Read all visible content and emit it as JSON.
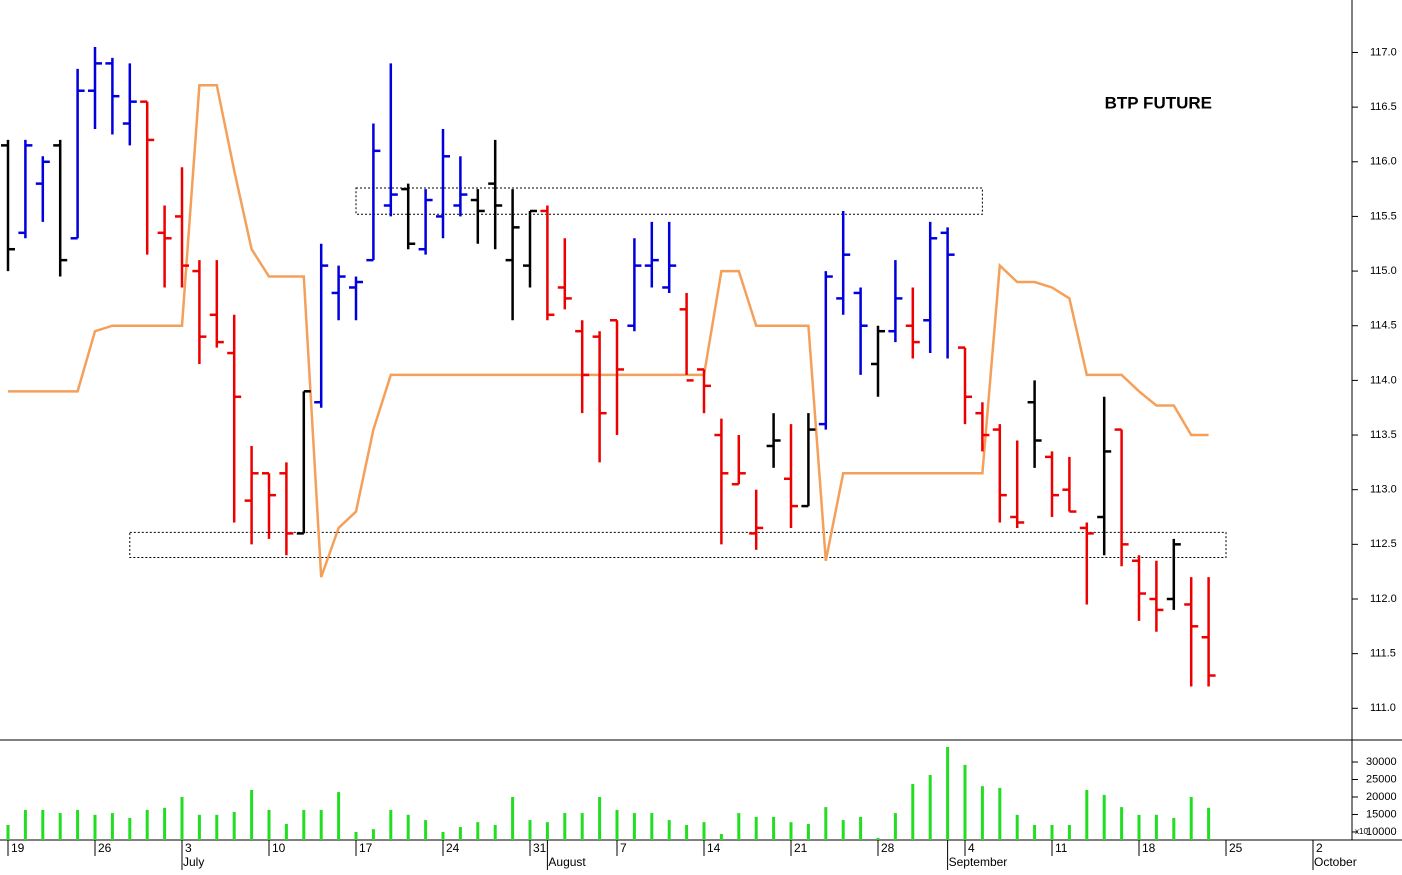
{
  "chart_data": {
    "type": "ohlc",
    "title": "BTP FUTURE",
    "categories": [
      "19",
      null,
      null,
      null,
      null,
      "26",
      null,
      null,
      null,
      null,
      "3",
      null,
      null,
      null,
      null,
      "10",
      null,
      null,
      null,
      null,
      "17",
      null,
      null,
      null,
      null,
      "24",
      null,
      null,
      null,
      null,
      "31",
      null,
      null,
      null,
      null,
      "7",
      null,
      null,
      null,
      null,
      "14",
      null,
      null,
      null,
      null,
      "21",
      null,
      null,
      null,
      null,
      "28",
      null,
      null,
      null,
      null,
      "4",
      null,
      null,
      null,
      null,
      "11",
      null,
      null,
      null,
      null,
      "18",
      null,
      null,
      null,
      null,
      "25",
      null,
      null,
      null,
      null,
      "2",
      null,
      null
    ],
    "months": [
      null,
      null,
      null,
      null,
      null,
      null,
      null,
      null,
      null,
      null,
      "July",
      null,
      null,
      null,
      null,
      null,
      null,
      null,
      null,
      null,
      null,
      null,
      null,
      null,
      null,
      null,
      null,
      null,
      null,
      null,
      null,
      "August",
      null,
      null,
      null,
      null,
      null,
      null,
      null,
      null,
      null,
      null,
      null,
      null,
      null,
      null,
      null,
      null,
      null,
      null,
      null,
      null,
      null,
      null,
      "September",
      null,
      null,
      null,
      null,
      null,
      null,
      null,
      null,
      null,
      null,
      null,
      null,
      null,
      null,
      null,
      null,
      null,
      null,
      null,
      null,
      "October",
      null,
      null
    ],
    "open": [
      116.15,
      115.35,
      115.8,
      116.15,
      115.3,
      116.65,
      116.9,
      116.35,
      116.55,
      115.35,
      115.5,
      115.0,
      114.6,
      114.25,
      112.9,
      113.15,
      113.15,
      112.6,
      113.8,
      114.8,
      114.85,
      115.1,
      115.6,
      115.75,
      115.2,
      115.5,
      115.6,
      115.65,
      115.8,
      115.1,
      115.05,
      115.55,
      114.85,
      114.45,
      114.4,
      114.55,
      114.5,
      115.05,
      114.85,
      114.65,
      114.1,
      113.5,
      113.05,
      112.6,
      113.4,
      113.1,
      112.85,
      113.6,
      114.75,
      114.8,
      114.15,
      114.45,
      114.5,
      114.55,
      115.35,
      114.3,
      113.7,
      113.55,
      112.75,
      113.8,
      113.3,
      113.0,
      112.65,
      112.75,
      113.55,
      112.35,
      112.0,
      112.0,
      111.95,
      111.65,
      null,
      null,
      null,
      null,
      null,
      null,
      null,
      null
    ],
    "high": [
      116.2,
      116.2,
      116.05,
      116.2,
      116.85,
      117.05,
      116.95,
      116.9,
      116.55,
      115.6,
      115.95,
      115.1,
      115.1,
      114.6,
      113.4,
      113.15,
      113.25,
      113.9,
      115.25,
      115.05,
      114.95,
      116.35,
      116.9,
      115.8,
      115.75,
      116.3,
      116.05,
      115.75,
      116.2,
      115.75,
      115.55,
      115.6,
      115.3,
      114.55,
      114.45,
      114.55,
      115.3,
      115.45,
      115.45,
      114.8,
      114.1,
      113.65,
      113.5,
      113.0,
      113.7,
      113.6,
      113.7,
      115.0,
      115.55,
      114.85,
      114.5,
      115.1,
      114.85,
      115.45,
      115.4,
      114.3,
      113.8,
      113.6,
      113.45,
      114.0,
      113.35,
      113.3,
      112.7,
      113.85,
      113.55,
      112.4,
      112.35,
      112.55,
      112.2,
      112.2,
      null,
      null,
      null,
      null,
      null,
      null,
      null,
      null
    ],
    "low": [
      115.0,
      115.3,
      115.45,
      114.95,
      115.3,
      116.3,
      116.25,
      116.15,
      115.15,
      114.85,
      114.85,
      114.15,
      114.3,
      112.7,
      112.5,
      112.55,
      112.4,
      112.6,
      113.75,
      114.55,
      114.55,
      115.1,
      115.5,
      115.2,
      115.15,
      115.3,
      115.5,
      115.25,
      115.2,
      114.55,
      114.85,
      114.55,
      114.65,
      113.7,
      113.25,
      113.5,
      114.45,
      114.85,
      114.8,
      114.05,
      113.7,
      112.5,
      113.05,
      112.45,
      113.2,
      112.65,
      112.85,
      113.55,
      114.6,
      114.05,
      113.85,
      114.35,
      114.2,
      114.25,
      114.2,
      113.6,
      113.35,
      112.7,
      112.65,
      113.2,
      112.75,
      112.8,
      111.95,
      112.4,
      112.3,
      111.8,
      111.7,
      111.9,
      111.2,
      111.2,
      null,
      null,
      null,
      null,
      null,
      null,
      null,
      null
    ],
    "close": [
      115.2,
      116.15,
      116.0,
      115.1,
      116.65,
      116.9,
      116.6,
      116.55,
      116.2,
      115.3,
      115.05,
      114.4,
      114.35,
      113.85,
      113.15,
      112.95,
      112.6,
      113.9,
      115.05,
      114.95,
      114.9,
      116.1,
      115.7,
      115.25,
      115.65,
      116.05,
      115.7,
      115.55,
      115.6,
      115.4,
      115.55,
      114.6,
      114.75,
      114.05,
      113.7,
      114.1,
      115.05,
      115.1,
      115.05,
      114.0,
      113.95,
      113.15,
      113.15,
      112.65,
      113.45,
      112.85,
      113.55,
      114.95,
      115.15,
      114.5,
      114.45,
      114.75,
      114.35,
      115.3,
      115.15,
      113.85,
      113.5,
      112.95,
      112.7,
      113.45,
      112.95,
      112.8,
      112.6,
      113.35,
      112.5,
      112.05,
      111.9,
      112.5,
      111.75,
      111.3,
      null,
      null,
      null,
      null,
      null,
      null,
      null,
      null
    ],
    "colors": [
      "#000000",
      "#0000dd",
      "#0000dd",
      "#000000",
      "#0000dd",
      "#0000dd",
      "#0000dd",
      "#0000dd",
      "#ee0000",
      "#ee0000",
      "#ee0000",
      "#ee0000",
      "#ee0000",
      "#ee0000",
      "#ee0000",
      "#ee0000",
      "#ee0000",
      "#000000",
      "#0000dd",
      "#0000dd",
      "#0000dd",
      "#0000dd",
      "#0000dd",
      "#000000",
      "#0000dd",
      "#0000dd",
      "#0000dd",
      "#000000",
      "#000000",
      "#000000",
      "#000000",
      "#ee0000",
      "#ee0000",
      "#ee0000",
      "#ee0000",
      "#ee0000",
      "#0000dd",
      "#0000dd",
      "#0000dd",
      "#ee0000",
      "#ee0000",
      "#ee0000",
      "#ee0000",
      "#ee0000",
      "#000000",
      "#ee0000",
      "#000000",
      "#0000dd",
      "#0000dd",
      "#0000dd",
      "#000000",
      "#0000dd",
      "#ee0000",
      "#0000dd",
      "#0000dd",
      "#ee0000",
      "#ee0000",
      "#ee0000",
      "#ee0000",
      "#000000",
      "#ee0000",
      "#ee0000",
      "#ee0000",
      "#000000",
      "#ee0000",
      "#ee0000",
      "#ee0000",
      "#000000",
      "#ee0000",
      "#ee0000",
      null,
      null,
      null,
      null,
      null,
      null,
      null,
      null
    ],
    "line": {
      "color": "#f5a05a",
      "values": [
        113.9,
        113.9,
        113.9,
        113.9,
        113.9,
        114.45,
        114.5,
        114.5,
        114.5,
        114.5,
        114.5,
        116.7,
        116.7,
        115.92,
        115.2,
        114.95,
        114.95,
        114.95,
        112.2,
        112.65,
        112.8,
        113.55,
        114.05,
        114.05,
        114.05,
        114.05,
        114.05,
        114.05,
        114.05,
        114.05,
        114.05,
        114.05,
        114.05,
        114.05,
        114.05,
        114.05,
        114.05,
        114.05,
        114.05,
        114.05,
        114.05,
        115.0,
        115.0,
        114.5,
        114.5,
        114.5,
        114.5,
        112.35,
        113.15,
        113.15,
        113.15,
        113.15,
        113.15,
        113.15,
        113.15,
        113.15,
        113.15,
        115.05,
        114.9,
        114.9,
        114.85,
        114.75,
        114.05,
        114.05,
        114.05,
        113.9,
        113.77,
        113.77,
        113.5,
        113.5,
        null,
        null,
        null,
        null,
        null,
        null,
        null,
        null
      ]
    },
    "ylim": [
      110.71,
      117.48
    ],
    "yticks": [
      {
        "value": 111,
        "label": "111.0"
      },
      {
        "value": 111.5,
        "label": "111.5"
      },
      {
        "value": 112,
        "label": "112.0"
      },
      {
        "value": 112.5,
        "label": "112.5"
      },
      {
        "value": 113,
        "label": "113.0"
      },
      {
        "value": 113.5,
        "label": "113.5"
      },
      {
        "value": 114,
        "label": "114.0"
      },
      {
        "value": 114.5,
        "label": "114.5"
      },
      {
        "value": 115,
        "label": "115.0"
      },
      {
        "value": 115.5,
        "label": "115.5"
      },
      {
        "value": 116,
        "label": "116.0"
      },
      {
        "value": 116.5,
        "label": "116.5"
      },
      {
        "value": 117,
        "label": "117.0"
      }
    ],
    "zones": [
      {
        "x": [
          20,
          56
        ],
        "y": [
          115.52,
          115.76
        ]
      },
      {
        "x": [
          7,
          70
        ],
        "y": [
          112.38,
          112.61
        ]
      }
    ],
    "volume": {
      "color": "#22dd22",
      "note": "x10",
      "values": [
        12000,
        16300,
        16300,
        15400,
        16300,
        14900,
        15400,
        14000,
        16300,
        16900,
        20000,
        14900,
        14900,
        15700,
        22000,
        16300,
        12300,
        16300,
        16300,
        21400,
        10000,
        10800,
        16300,
        14900,
        13400,
        10000,
        11400,
        12800,
        12000,
        20000,
        13400,
        12800,
        15400,
        15400,
        20000,
        16300,
        15400,
        15400,
        13400,
        12000,
        12800,
        9400,
        15400,
        14300,
        14300,
        12800,
        12300,
        17100,
        13400,
        14300,
        8300,
        15400,
        23700,
        26300,
        34300,
        29200,
        23100,
        22600,
        14900,
        12000,
        12000,
        12000,
        22000,
        20600,
        17100,
        14900,
        14900,
        14000,
        20000,
        16900,
        null,
        null,
        null,
        null,
        null,
        null,
        null,
        null
      ],
      "ylim": [
        7700,
        36300
      ],
      "yticks": [
        10000,
        15000,
        20000,
        25000,
        30000
      ]
    }
  }
}
